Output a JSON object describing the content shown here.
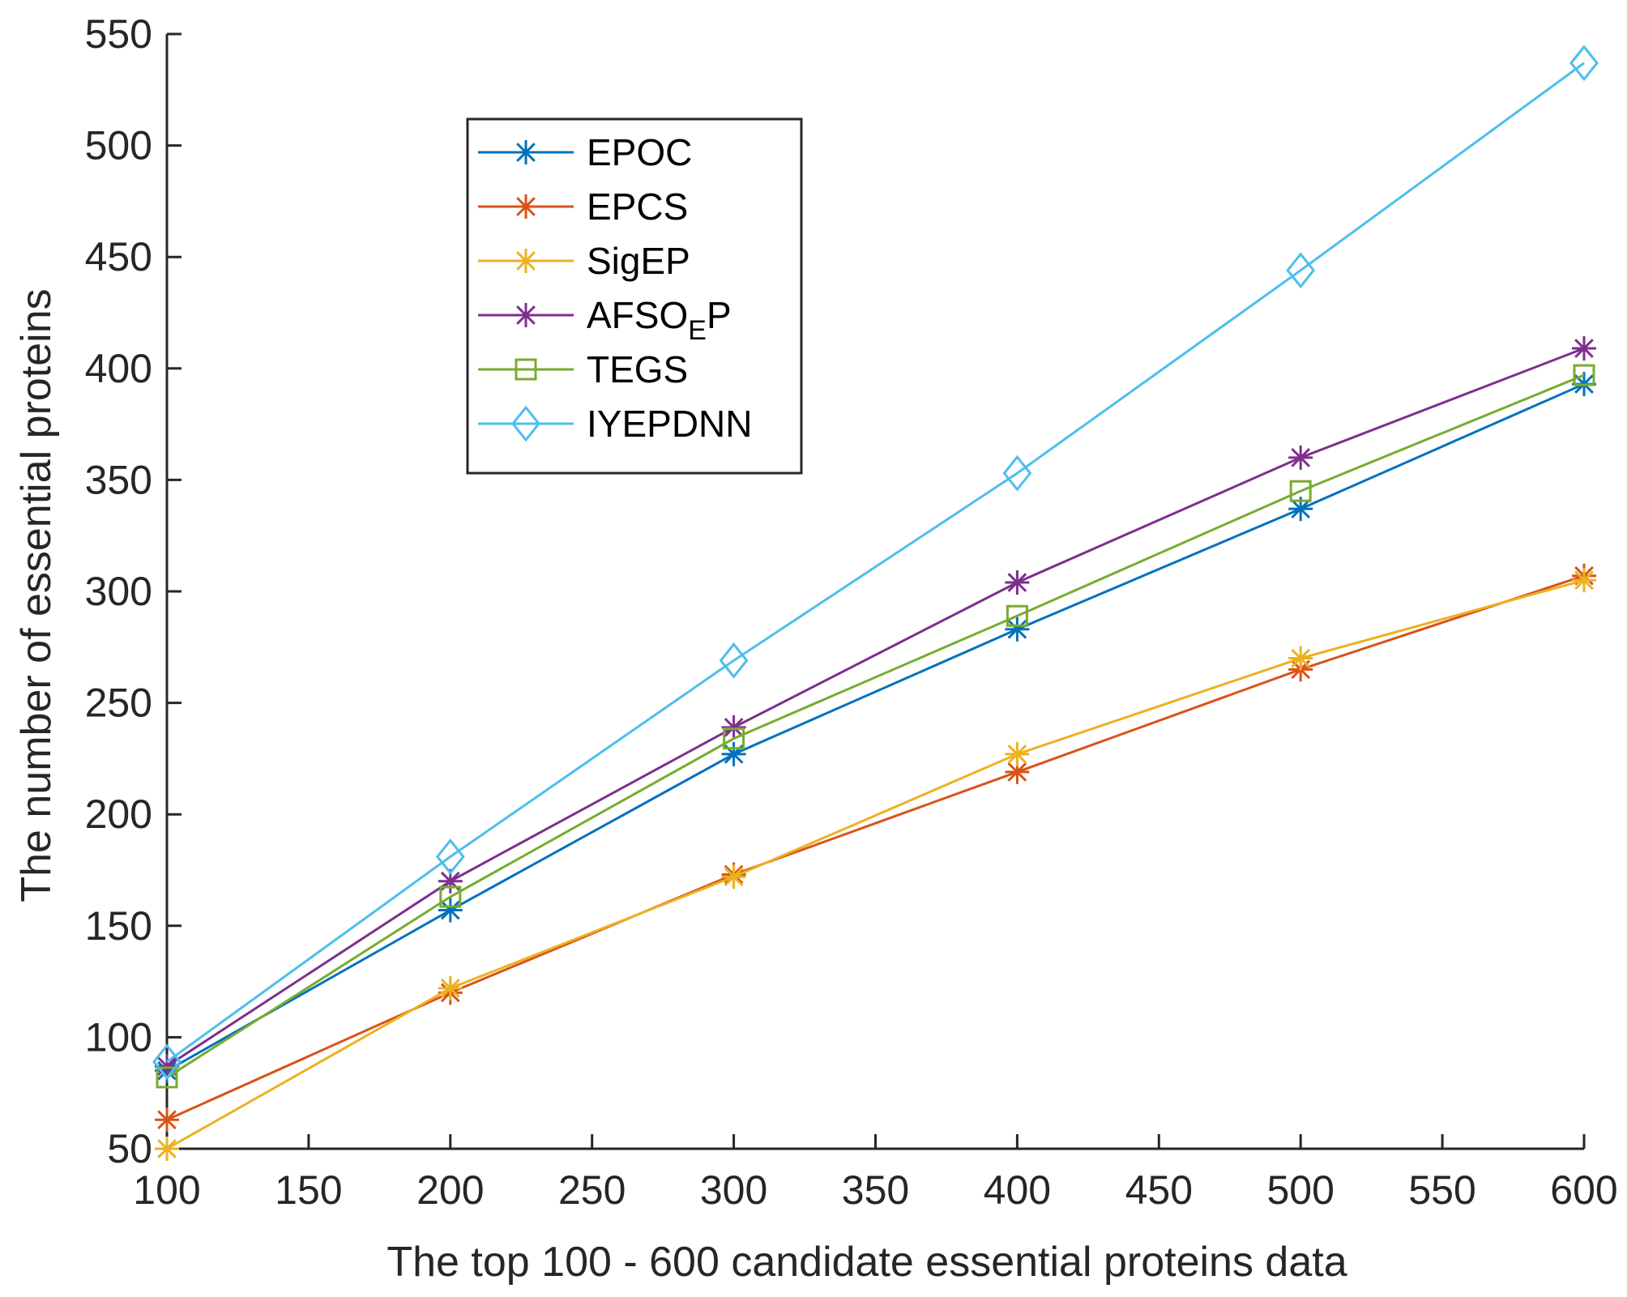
{
  "chart_data": {
    "type": "line",
    "title": "",
    "xlabel": "The top 100 - 600 candidate essential proteins data",
    "ylabel": "The number of essential proteins",
    "xlim": [
      100,
      600
    ],
    "ylim": [
      50,
      550
    ],
    "xticks": [
      100,
      150,
      200,
      250,
      300,
      350,
      400,
      450,
      500,
      550,
      600
    ],
    "yticks": [
      50,
      100,
      150,
      200,
      250,
      300,
      350,
      400,
      450,
      500,
      550
    ],
    "grid": false,
    "legend_position": "upper-left",
    "x": [
      100,
      200,
      300,
      400,
      500,
      600
    ],
    "series": [
      {
        "name": "EPOC",
        "name_sub": "",
        "name_tail": "",
        "color": "#0072BD",
        "marker": "asterisk",
        "values": [
          85,
          157,
          227,
          283,
          337,
          393
        ]
      },
      {
        "name": "EPCS",
        "name_sub": "",
        "name_tail": "",
        "color": "#D95319",
        "marker": "asterisk",
        "values": [
          63,
          120,
          173,
          219,
          265,
          307
        ]
      },
      {
        "name": "SigEP",
        "name_sub": "",
        "name_tail": "",
        "color": "#EDB120",
        "marker": "asterisk",
        "values": [
          50,
          122,
          172,
          227,
          270,
          305
        ]
      },
      {
        "name": "AFSO",
        "name_sub": "E",
        "name_tail": "P",
        "color": "#7E2F8E",
        "marker": "asterisk",
        "values": [
          87,
          170,
          239,
          304,
          360,
          409
        ]
      },
      {
        "name": "TEGS",
        "name_sub": "",
        "name_tail": "",
        "color": "#77AC30",
        "marker": "square",
        "values": [
          82,
          163,
          234,
          289,
          345,
          397
        ]
      },
      {
        "name": "IYEPDNN",
        "name_sub": "",
        "name_tail": "",
        "color": "#4DBEEE",
        "marker": "diamond",
        "values": [
          89,
          181,
          269,
          353,
          444,
          537
        ]
      }
    ]
  }
}
